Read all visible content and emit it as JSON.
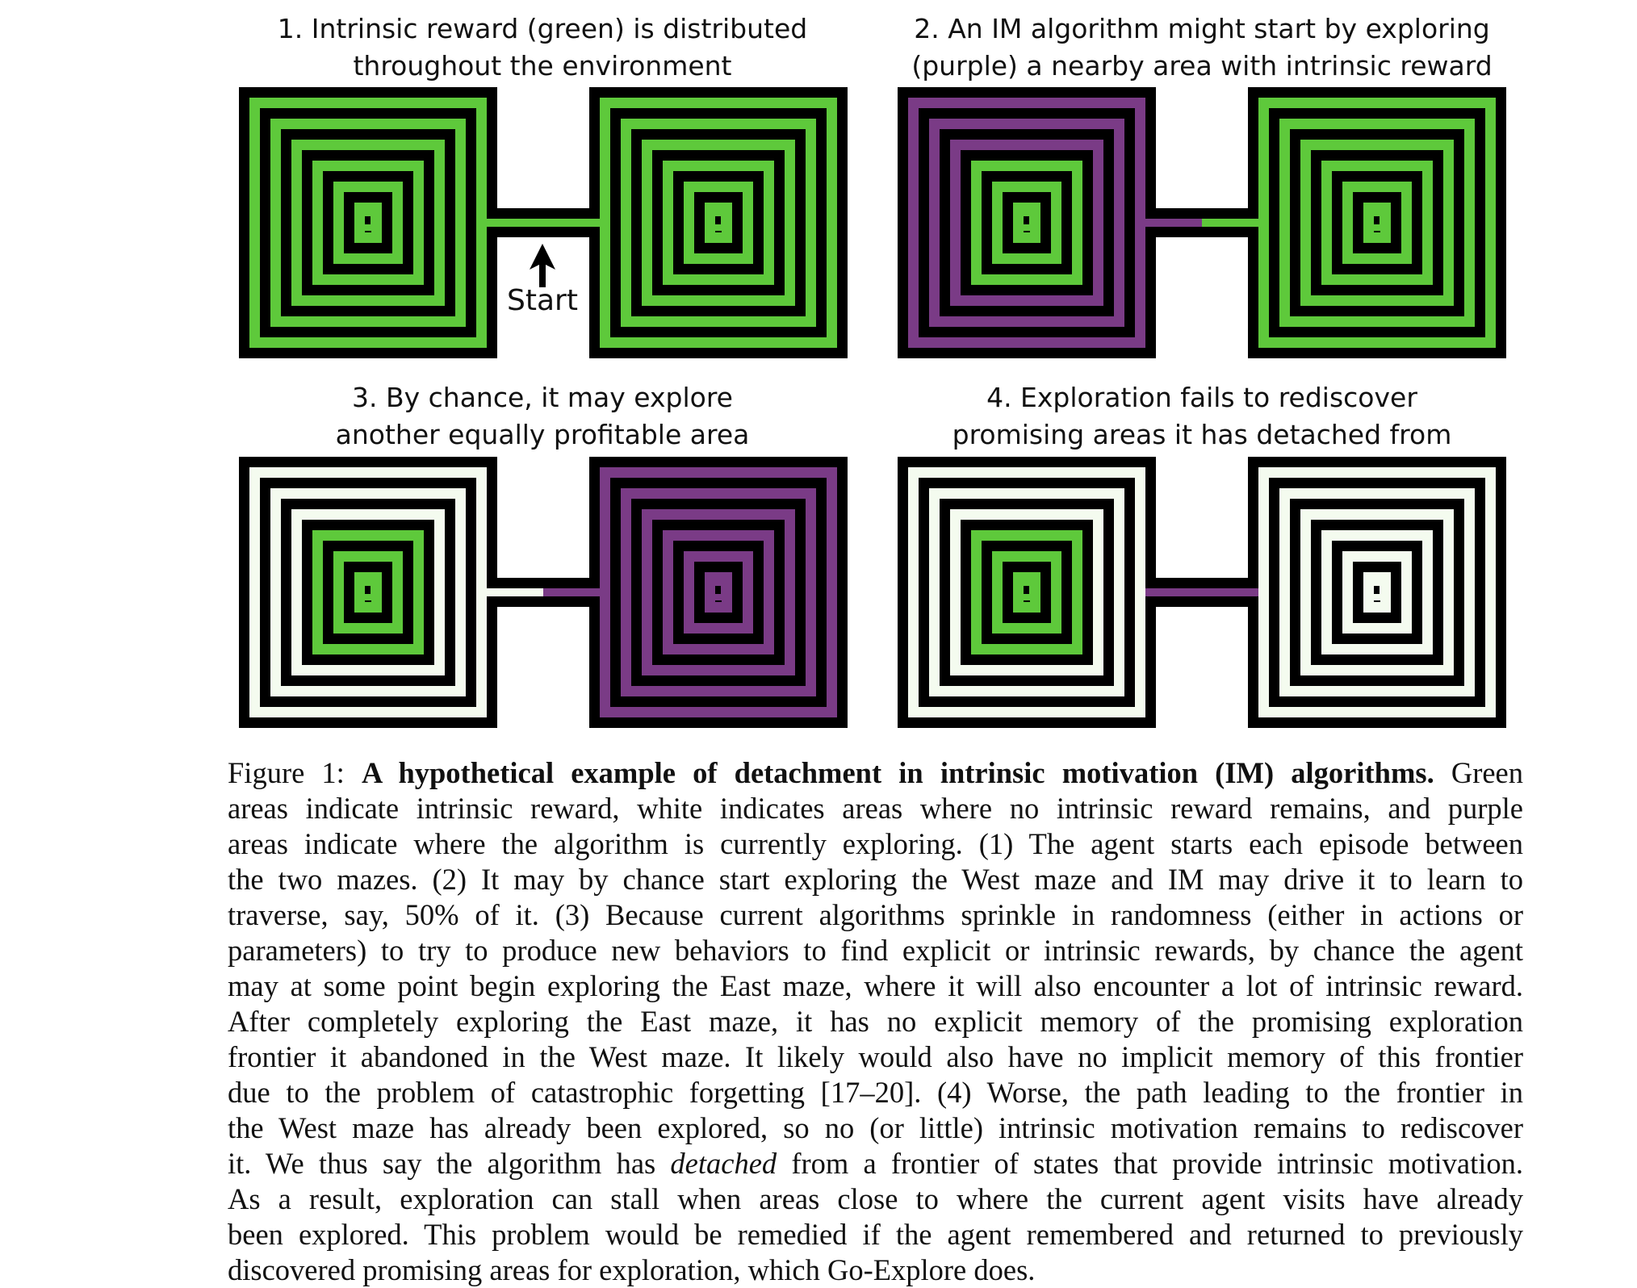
{
  "colors": {
    "reward": "#5ec93b",
    "explored": "#f4fbef",
    "exploring": "#7a3b86",
    "wall": "#000000"
  },
  "panels": [
    {
      "title_line1": "1. Intrinsic reward (green) is distributed",
      "title_line2": "throughout the environment"
    },
    {
      "title_line1": "2. An IM algorithm might start by exploring",
      "title_line2": "(purple) a nearby area with intrinsic reward"
    },
    {
      "title_line1": "3. By chance, it may explore",
      "title_line2": "another equally profitable area"
    },
    {
      "title_line1": "4. Exploration fails to rediscover",
      "title_line2": "promising areas it has detached from"
    }
  ],
  "start_label": "Start",
  "caption": {
    "lines": [
      [
        "Figure 1: ",
        "A hypothetical example of detachment in intrinsic motivation (IM) algorithms.",
        " Green"
      ],
      [
        "areas indicate intrinsic reward, white indicates areas where no intrinsic reward remains, and purple"
      ],
      [
        "areas indicate where the algorithm is currently exploring. (1) The agent starts each episode between"
      ],
      [
        "the two mazes. (2) It may by chance start exploring the West maze and IM may drive it to learn to"
      ],
      [
        "traverse, say, 50% of it. (3) Because current algorithms sprinkle in randomness (either in actions or"
      ],
      [
        "parameters) to try to produce new behaviors to find explicit or intrinsic rewards, by chance the agent"
      ],
      [
        "may at some point begin exploring the East maze, where it will also encounter a lot of intrinsic reward."
      ],
      [
        "After completely exploring the East maze, it has no explicit memory of the promising exploration"
      ],
      [
        "frontier it abandoned in the West maze. It likely would also have no implicit memory of this frontier"
      ],
      [
        "due to the problem of catastrophic forgetting [17–20]. (4) Worse, the path leading to the frontier in"
      ],
      [
        "the West maze has already been explored, so no (or little) intrinsic motivation remains to rediscover"
      ],
      [
        "it. We thus say the algorithm has ",
        "detached",
        " from a frontier of states that provide intrinsic motivation."
      ],
      [
        "As a result, exploration can stall when areas close to where the current agent visits have already"
      ],
      [
        "been explored. This problem would be remedied if the agent remembered and returned to previously"
      ],
      [
        "discovered promising areas for exploration, which Go-Explore does."
      ]
    ]
  }
}
